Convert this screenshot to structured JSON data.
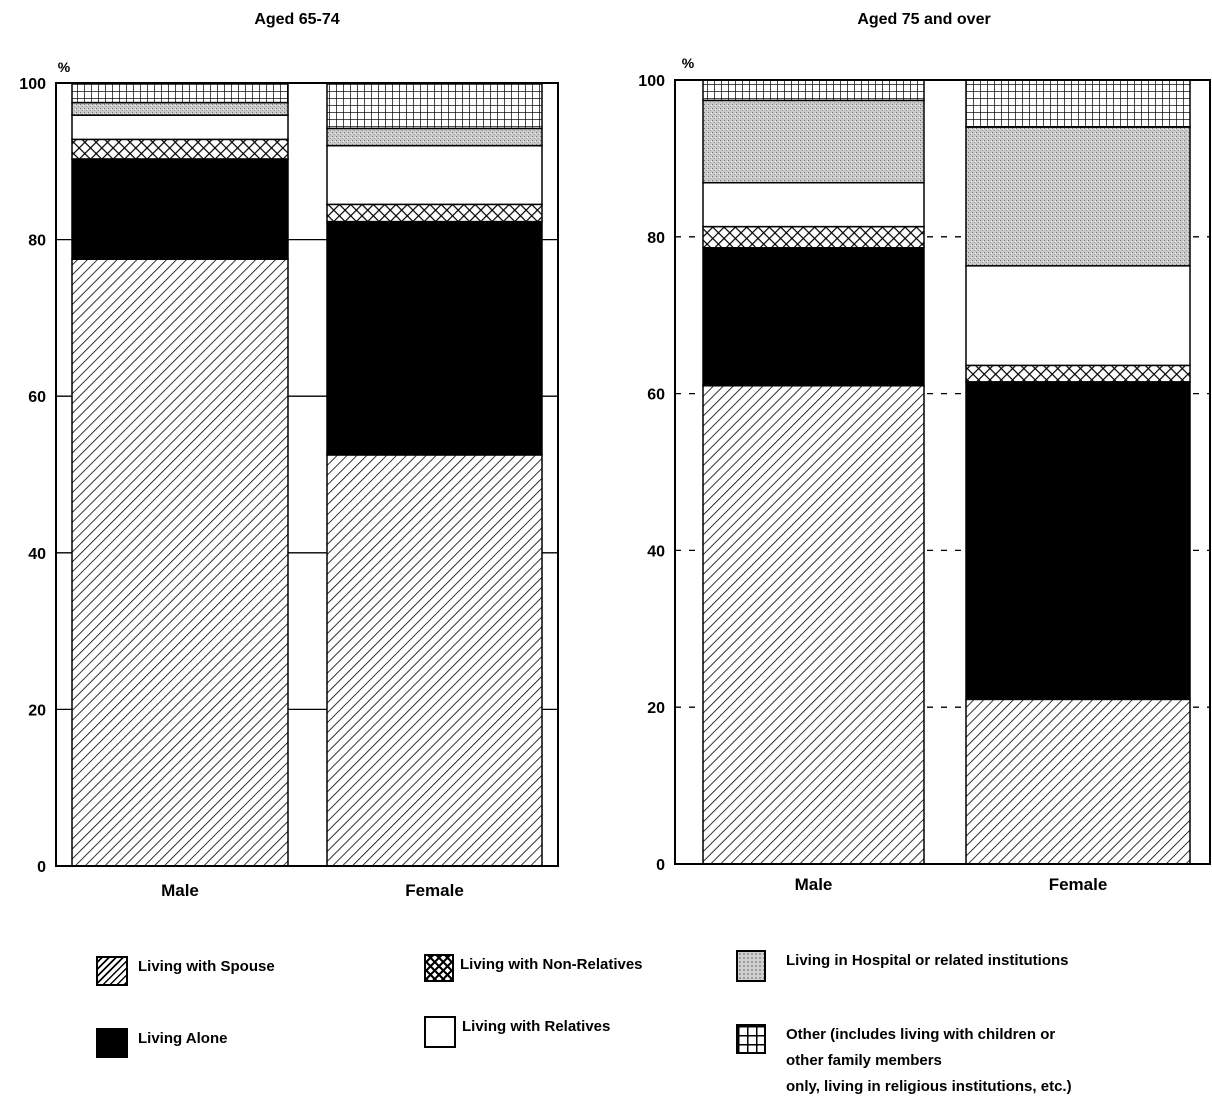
{
  "chart_data": [
    {
      "type": "bar",
      "stacked": true,
      "title": "Aged 65-74",
      "ylabel": "%",
      "ylim": [
        0,
        100
      ],
      "yticks": [
        0,
        20,
        40,
        60,
        80,
        100
      ],
      "grid": "solid horizontal",
      "categories": [
        "Male",
        "Female"
      ],
      "series": [
        {
          "name": "Living with Spouse",
          "values": [
            77.5,
            52.5
          ]
        },
        {
          "name": "Living Alone",
          "values": [
            12.8,
            29.8
          ]
        },
        {
          "name": "Living with Non-Relatives",
          "values": [
            2.5,
            2.2
          ]
        },
        {
          "name": "Living with Relatives",
          "values": [
            3.1,
            7.5
          ]
        },
        {
          "name": "Living in Hospital or related institutions",
          "values": [
            1.6,
            2.2
          ]
        },
        {
          "name": "Other (includes living with children or other family members only, living in religious institutions, etc.)",
          "values": [
            2.5,
            5.8
          ]
        }
      ]
    },
    {
      "type": "bar",
      "stacked": true,
      "title": "Aged 75 and over",
      "ylabel": "%",
      "ylim": [
        0,
        100
      ],
      "yticks": [
        0,
        20,
        40,
        60,
        80,
        100
      ],
      "grid": "dashed horizontal",
      "categories": [
        "Male",
        "Female"
      ],
      "series": [
        {
          "name": "Living with Spouse",
          "values": [
            61.0,
            21.0
          ]
        },
        {
          "name": "Living Alone",
          "values": [
            17.6,
            40.5
          ]
        },
        {
          "name": "Living with Non-Relatives",
          "values": [
            2.7,
            2.1
          ]
        },
        {
          "name": "Living with Relatives",
          "values": [
            5.6,
            12.7
          ]
        },
        {
          "name": "Living in Hospital or related institutions",
          "values": [
            10.5,
            17.7
          ]
        },
        {
          "name": "Other (includes living with children or other family members only, living in religious institutions, etc.)",
          "values": [
            2.6,
            6.0
          ]
        }
      ]
    }
  ],
  "legend": {
    "items": [
      {
        "key": "spouse",
        "label": "Living with Spouse"
      },
      {
        "key": "alone",
        "label": "Living Alone"
      },
      {
        "key": "nonrel",
        "label": "Living with Non-Relatives"
      },
      {
        "key": "rel",
        "label": "Living with Relatives"
      },
      {
        "key": "hosp",
        "label": "Living in Hospital or related institutions"
      },
      {
        "key": "other",
        "label": "Other (includes living with children or\nother family members\nonly, living in religious institutions, etc.)"
      }
    ]
  },
  "series_fills": [
    "diagonal-hatch",
    "solid-black",
    "cross-hatch",
    "white",
    "grey-stipple",
    "grid"
  ]
}
